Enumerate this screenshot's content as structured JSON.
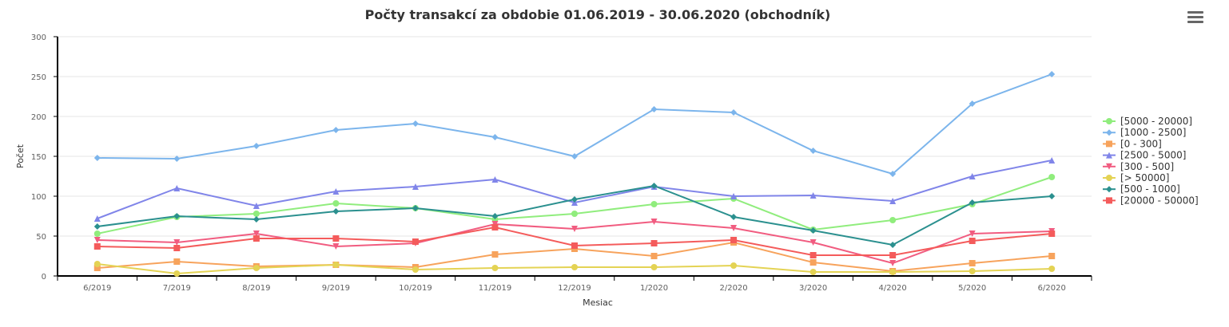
{
  "menu_icon": "hamburger-menu-icon",
  "chart_data": {
    "type": "line",
    "title": "Počty transakcí za obdobie 01.06.2019 - 30.06.2020 (obchodník)",
    "xlabel": "Mesiac",
    "ylabel": "Počet",
    "ylim": [
      0,
      300
    ],
    "yticks": [
      0,
      50,
      100,
      150,
      200,
      250,
      300
    ],
    "grid": true,
    "legend_position": "right",
    "categories": [
      "6/2019",
      "7/2019",
      "8/2019",
      "9/2019",
      "10/2019",
      "11/2019",
      "12/2019",
      "1/2020",
      "2/2020",
      "3/2020",
      "4/2020",
      "5/2020",
      "6/2020"
    ],
    "series": [
      {
        "name": "[5000 - 20000]",
        "color": "#90ed7d",
        "marker": "circle",
        "values": [
          53,
          74,
          78,
          91,
          85,
          71,
          78,
          90,
          97,
          58,
          70,
          90,
          124
        ]
      },
      {
        "name": "[1000 - 2500]",
        "color": "#7cb5ec",
        "marker": "diamond",
        "values": [
          148,
          147,
          163,
          183,
          191,
          174,
          150,
          209,
          205,
          157,
          128,
          216,
          253
        ]
      },
      {
        "name": "[0 - 300]",
        "color": "#f7a35c",
        "marker": "square",
        "values": [
          10,
          18,
          12,
          14,
          11,
          27,
          34,
          25,
          42,
          17,
          6,
          16,
          25
        ]
      },
      {
        "name": "[2500 - 5000]",
        "color": "#8085e9",
        "marker": "triangle",
        "values": [
          72,
          110,
          88,
          106,
          112,
          121,
          92,
          112,
          100,
          101,
          94,
          125,
          145
        ]
      },
      {
        "name": "[300 - 500]",
        "color": "#f15c80",
        "marker": "triangle-down",
        "values": [
          45,
          42,
          53,
          37,
          41,
          65,
          59,
          68,
          60,
          42,
          16,
          53,
          56
        ]
      },
      {
        "name": "[> 50000]",
        "color": "#e4d354",
        "marker": "circle",
        "values": [
          15,
          3,
          10,
          14,
          8,
          10,
          11,
          11,
          13,
          5,
          5,
          6,
          9
        ]
      },
      {
        "name": "[500 - 1000]",
        "color": "#2b908f",
        "marker": "diamond",
        "values": [
          62,
          75,
          71,
          81,
          85,
          75,
          96,
          113,
          74,
          57,
          39,
          92,
          100
        ]
      },
      {
        "name": "[20000 - 50000]",
        "color": "#f45b5b",
        "marker": "square",
        "values": [
          37,
          35,
          47,
          47,
          43,
          61,
          38,
          41,
          45,
          26,
          26,
          44,
          53
        ]
      }
    ]
  }
}
